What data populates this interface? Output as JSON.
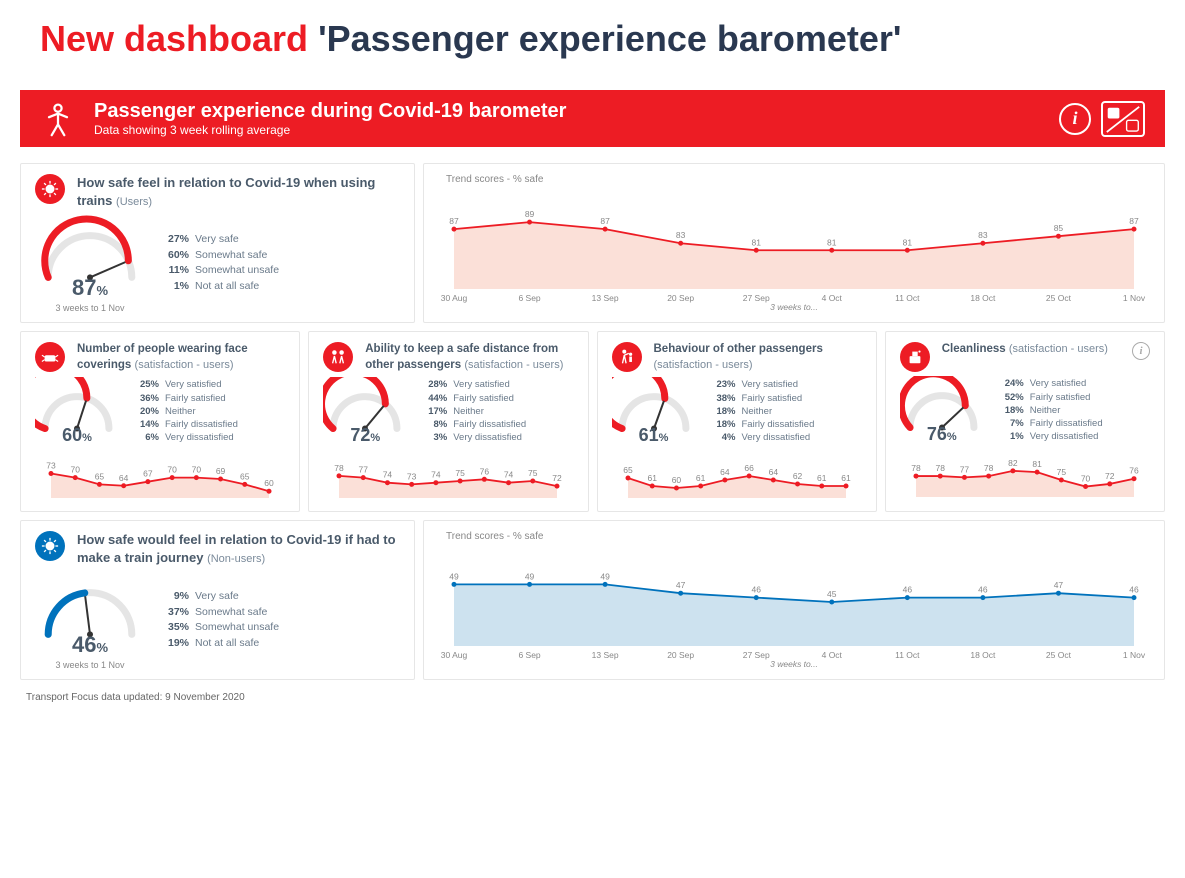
{
  "page_title": {
    "prefix": "New dashboard",
    "suffix": "'Passenger experience barometer'"
  },
  "banner": {
    "title": "Passenger experience during Covid-19 barometer",
    "subtitle": "Data showing 3 week rolling average"
  },
  "colors": {
    "red": "#ed1c24",
    "blue": "#0072bc",
    "area_red": "#fbe0d8",
    "area_blue": "#cde2ef",
    "text": "#4a5a6a"
  },
  "dates_x": [
    "30 Aug",
    "6 Sep",
    "13 Sep",
    "20 Sep",
    "27 Sep",
    "4 Oct",
    "11 Oct",
    "18 Oct",
    "25 Oct",
    "1 Nov"
  ],
  "trend_axis_note": "3 weeks to...",
  "big_trend_title": "Trend scores - % safe",
  "date_note": "3 weeks to 1 Nov",
  "safe_users": {
    "title": "How safe feel in relation to Covid-19 when using trains",
    "sub": "(Users)",
    "gauge_value": 87,
    "gauge_color": "#ed1c24",
    "breakdown": [
      {
        "pct": "27%",
        "label": "Very safe"
      },
      {
        "pct": "60%",
        "label": "Somewhat safe"
      },
      {
        "pct": "11%",
        "label": "Somewhat unsafe"
      },
      {
        "pct": "1%",
        "label": "Not at all safe"
      }
    ],
    "trend": {
      "values": [
        87,
        89,
        87,
        83,
        81,
        81,
        81,
        83,
        85,
        87
      ],
      "ylim": [
        70,
        95
      ],
      "color": "#ed1c24",
      "area": "#fbe0d8"
    }
  },
  "small_cards": [
    {
      "id": "facecoverings",
      "title": "Number of people wearing face coverings",
      "sub": "(satisfaction - users)",
      "gauge_value": 60,
      "gauge_color": "#ed1c24",
      "breakdown": [
        {
          "pct": "25%",
          "label": "Very satisfied"
        },
        {
          "pct": "36%",
          "label": "Fairly satisfied"
        },
        {
          "pct": "20%",
          "label": "Neither"
        },
        {
          "pct": "14%",
          "label": "Fairly dissatisfied"
        },
        {
          "pct": "6%",
          "label": "Very dissatisfied"
        }
      ],
      "trend": {
        "values": [
          73,
          70,
          65,
          64,
          67,
          70,
          70,
          69,
          65,
          60
        ],
        "ylim": [
          55,
          80
        ],
        "color": "#ed1c24",
        "area": "#fbe0d8"
      }
    },
    {
      "id": "distance",
      "title": "Ability to keep a safe distance from other passengers",
      "sub": "(satisfaction - users)",
      "gauge_value": 72,
      "gauge_color": "#ed1c24",
      "breakdown": [
        {
          "pct": "28%",
          "label": "Very satisfied"
        },
        {
          "pct": "44%",
          "label": "Fairly satisfied"
        },
        {
          "pct": "17%",
          "label": "Neither"
        },
        {
          "pct": "8%",
          "label": "Fairly dissatisfied"
        },
        {
          "pct": "3%",
          "label": "Very dissatisfied"
        }
      ],
      "trend": {
        "values": [
          78,
          77,
          74,
          73,
          74,
          75,
          76,
          74,
          75,
          72
        ],
        "ylim": [
          65,
          85
        ],
        "color": "#ed1c24",
        "area": "#fbe0d8"
      }
    },
    {
      "id": "behaviour",
      "title": "Behaviour of other passengers",
      "sub": "(satisfaction - users)",
      "gauge_value": 61,
      "gauge_color": "#ed1c24",
      "breakdown": [
        {
          "pct": "23%",
          "label": "Very satisfied"
        },
        {
          "pct": "38%",
          "label": "Fairly satisfied"
        },
        {
          "pct": "18%",
          "label": "Neither"
        },
        {
          "pct": "18%",
          "label": "Fairly dissatisfied"
        },
        {
          "pct": "4%",
          "label": "Very dissatisfied"
        }
      ],
      "trend": {
        "values": [
          65,
          61,
          60,
          61,
          64,
          66,
          64,
          62,
          61,
          61
        ],
        "ylim": [
          55,
          72
        ],
        "color": "#ed1c24",
        "area": "#fbe0d8"
      }
    },
    {
      "id": "cleanliness",
      "title": "Cleanliness",
      "sub": "(satisfaction - users)",
      "gauge_value": 76,
      "gauge_color": "#ed1c24",
      "has_info": true,
      "breakdown": [
        {
          "pct": "24%",
          "label": "Very satisfied"
        },
        {
          "pct": "52%",
          "label": "Fairly satisfied"
        },
        {
          "pct": "18%",
          "label": "Neither"
        },
        {
          "pct": "7%",
          "label": "Fairly dissatisfied"
        },
        {
          "pct": "1%",
          "label": "Very dissatisfied"
        }
      ],
      "trend": {
        "values": [
          78,
          78,
          77,
          78,
          82,
          81,
          75,
          70,
          72,
          76
        ],
        "ylim": [
          62,
          88
        ],
        "color": "#ed1c24",
        "area": "#fbe0d8"
      }
    }
  ],
  "safe_nonusers": {
    "title": "How safe would feel in relation to Covid-19 if had to make a train journey",
    "sub": "(Non-users)",
    "gauge_value": 46,
    "gauge_color": "#0072bc",
    "breakdown": [
      {
        "pct": "9%",
        "label": "Very safe"
      },
      {
        "pct": "37%",
        "label": "Somewhat safe"
      },
      {
        "pct": "35%",
        "label": "Somewhat unsafe"
      },
      {
        "pct": "19%",
        "label": "Not at all safe"
      }
    ],
    "trend": {
      "values": [
        49,
        49,
        49,
        47,
        46,
        45,
        46,
        46,
        47,
        46
      ],
      "ylim": [
        35,
        55
      ],
      "color": "#0072bc",
      "area": "#cde2ef"
    }
  },
  "footer": "Transport Focus data updated: 9 November 2020"
}
